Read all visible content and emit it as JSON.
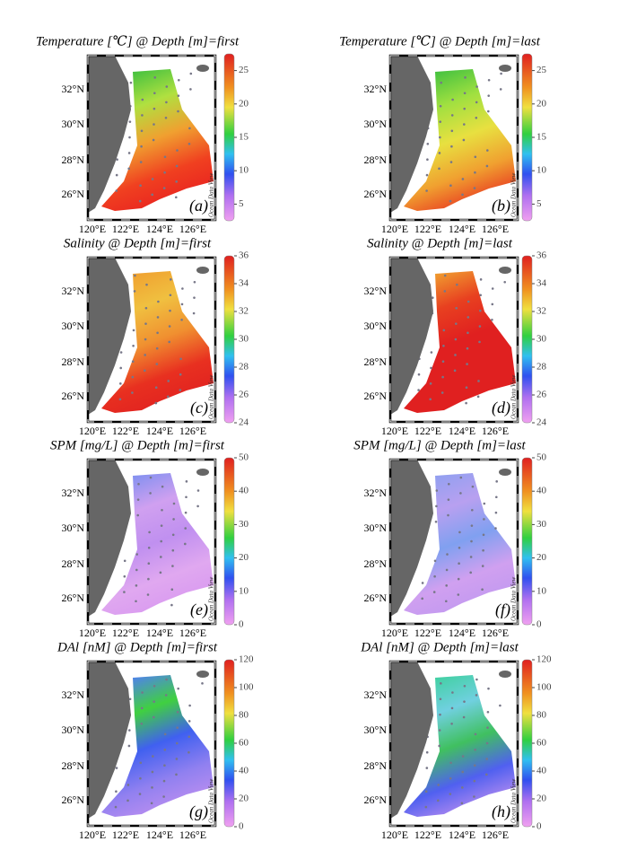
{
  "panels": [
    {
      "title": "Temperature [℃] @ Depth [m]=first",
      "label": "(a)",
      "colorbar": {
        "lim": [
          2.5,
          27.5
        ],
        "ticks": [
          5,
          10,
          15,
          20,
          25
        ]
      }
    },
    {
      "title": "Temperature [℃] @ Depth [m]=last",
      "label": "(b)",
      "colorbar": {
        "lim": [
          2.5,
          27.5
        ],
        "ticks": [
          5,
          10,
          15,
          20,
          25
        ]
      }
    },
    {
      "title": "Salinity @ Depth [m]=first",
      "label": "(c)",
      "colorbar": {
        "lim": [
          24,
          36
        ],
        "ticks": [
          24,
          26,
          28,
          30,
          32,
          34,
          36
        ]
      }
    },
    {
      "title": "Salinity @ Depth [m]=last",
      "label": "(d)",
      "colorbar": {
        "lim": [
          24,
          36
        ],
        "ticks": [
          24,
          26,
          28,
          30,
          32,
          34,
          36
        ]
      }
    },
    {
      "title": "SPM [mg/L] @ Depth [m]=first",
      "label": "(e)",
      "colorbar": {
        "lim": [
          0,
          50
        ],
        "ticks": [
          0,
          10,
          20,
          30,
          40,
          50
        ]
      }
    },
    {
      "title": "SPM [mg/L] @ Depth [m]=last",
      "label": "(f)",
      "colorbar": {
        "lim": [
          0,
          50
        ],
        "ticks": [
          0,
          10,
          20,
          30,
          40,
          50
        ]
      }
    },
    {
      "title": "DAl [nM] @ Depth [m]=first",
      "label": "(g)",
      "colorbar": {
        "lim": [
          0,
          120
        ],
        "ticks": [
          0,
          20,
          40,
          60,
          80,
          100,
          120
        ]
      }
    },
    {
      "title": "DAl [nM] @ Depth [m]=last",
      "label": "(h)",
      "colorbar": {
        "lim": [
          0,
          120
        ],
        "ticks": [
          0,
          20,
          40,
          60,
          80,
          100,
          120
        ]
      }
    }
  ],
  "lat_labels": [
    "32°N",
    "30°N",
    "28°N",
    "26°N"
  ],
  "lon_labels": [
    "120°E",
    "122°E",
    "124°E",
    "126°E"
  ],
  "watermark": "Ocean Data View"
}
